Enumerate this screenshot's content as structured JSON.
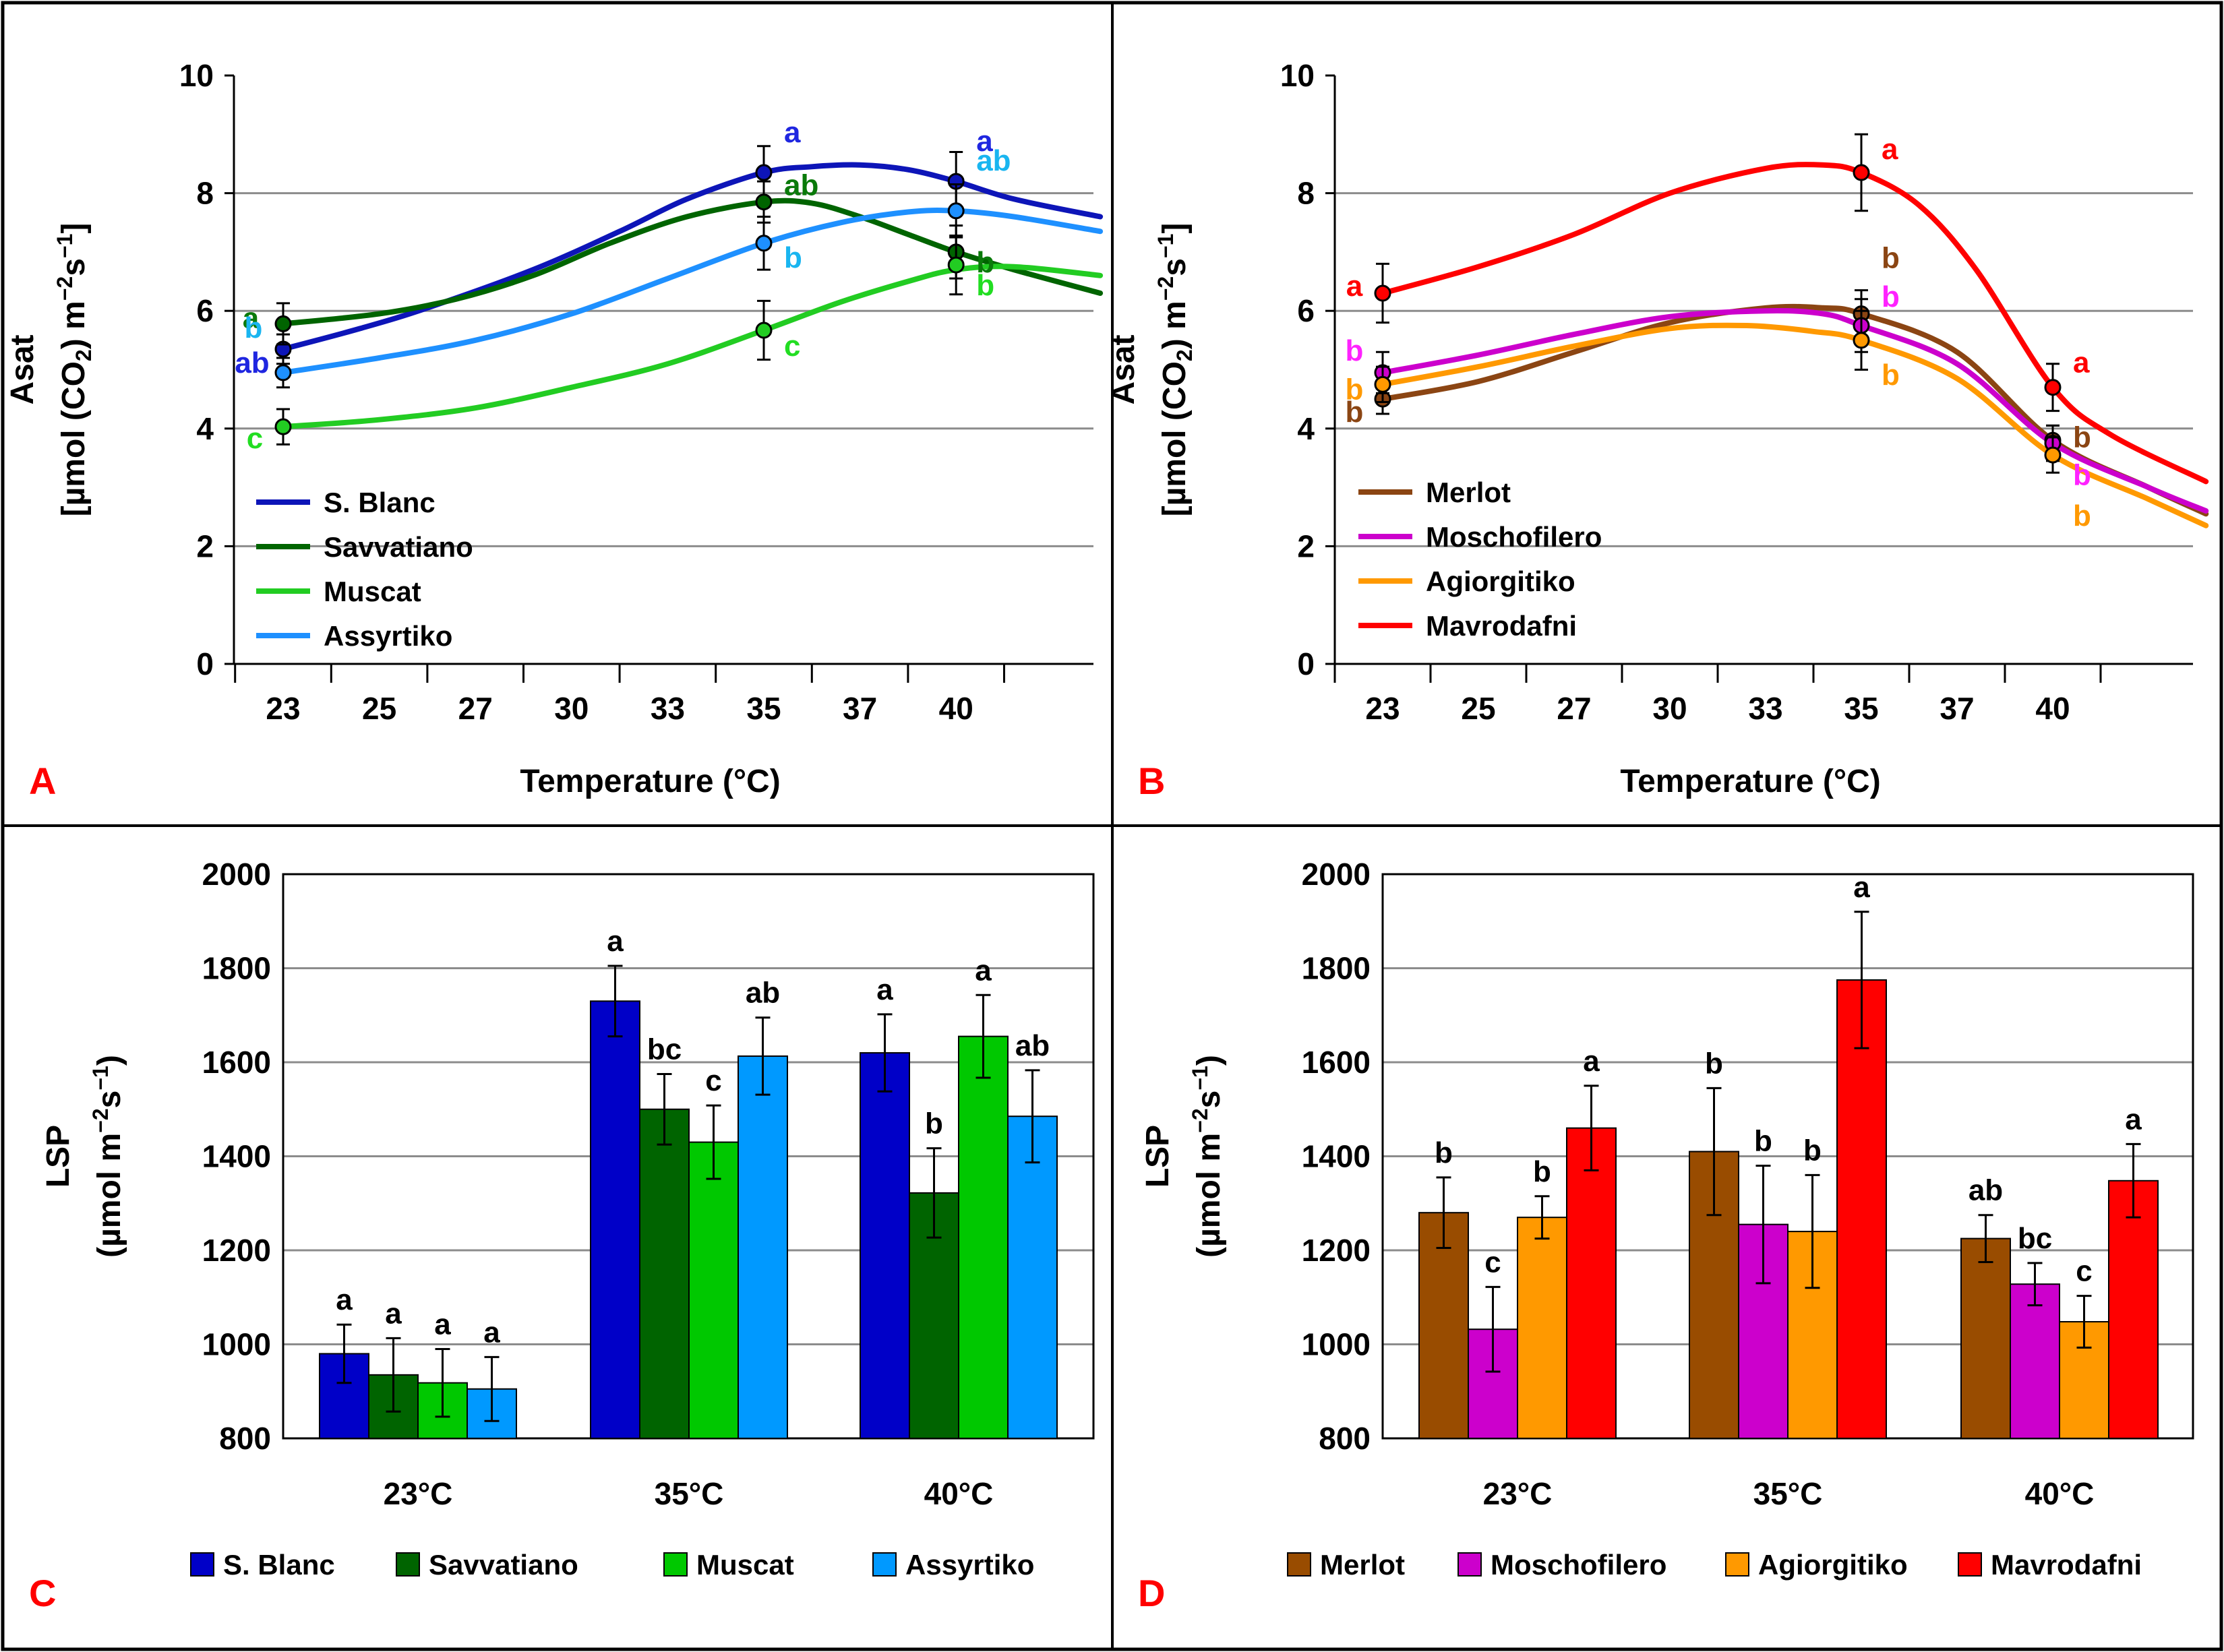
{
  "figure": {
    "panel_letter_color": "#ff0000",
    "border_color": "#000000"
  },
  "chart_data": [
    {
      "panel": "A",
      "type": "line",
      "title": "",
      "xlabel": "Temperature (°C)",
      "ylabel_line1": "Asat",
      "ylabel_line2": "[µmol (CO",
      "ylabel_sub": "2",
      "ylabel_line2_end": ") m",
      "ylabel_sup1": "−2",
      "ylabel_s": "s",
      "ylabel_sup2": "−1",
      "ylabel_close": "]",
      "x_ticks": [
        "23",
        "25",
        "27",
        "30",
        "33",
        "35",
        "37",
        "40"
      ],
      "ylim": [
        0,
        10
      ],
      "y_ticks": [
        "0",
        "2",
        "4",
        "6",
        "8",
        "10"
      ],
      "grid": true,
      "legend_position": "bottom-left",
      "series": [
        {
          "name": "S. Blanc",
          "color": "#0d15b8",
          "letter_color": "#1f26e0",
          "points": [
            {
              "t": "23",
              "value": 5.35,
              "err": 0.25,
              "sig": "ab"
            },
            {
              "t": "35",
              "value": 8.35,
              "err": 0.45,
              "sig": "a"
            },
            {
              "t": "40",
              "value": 8.2,
              "err": 0.5,
              "sig": "a"
            }
          ],
          "curve": [
            [
              0,
              5.35
            ],
            [
              0.8,
              5.7
            ],
            [
              1.5,
              6.05
            ],
            [
              2.6,
              6.7
            ],
            [
              3.5,
              7.35
            ],
            [
              4.2,
              7.9
            ],
            [
              5,
              8.35
            ],
            [
              5.5,
              8.45
            ],
            [
              6,
              8.48
            ],
            [
              6.5,
              8.4
            ],
            [
              7,
              8.2
            ],
            [
              7.6,
              7.9
            ],
            [
              8.5,
              7.6
            ]
          ]
        },
        {
          "name": "Savvatiano",
          "color": "#006400",
          "letter_color": "#0a7a0a",
          "points": [
            {
              "t": "23",
              "value": 5.78,
              "err": 0.35,
              "sig": "a"
            },
            {
              "t": "35",
              "value": 7.85,
              "err": 0.35,
              "sig": "ab"
            },
            {
              "t": "40",
              "value": 7.0,
              "err": 0.45,
              "sig": "b"
            }
          ],
          "curve": [
            [
              0,
              5.78
            ],
            [
              1,
              5.95
            ],
            [
              1.8,
              6.2
            ],
            [
              2.6,
              6.6
            ],
            [
              3.4,
              7.15
            ],
            [
              4.2,
              7.6
            ],
            [
              5,
              7.85
            ],
            [
              5.5,
              7.83
            ],
            [
              6,
              7.6
            ],
            [
              6.5,
              7.3
            ],
            [
              7,
              7.0
            ],
            [
              7.6,
              6.7
            ],
            [
              8.5,
              6.3
            ]
          ]
        },
        {
          "name": "Muscat",
          "color": "#22cc22",
          "letter_color": "#22dd22",
          "points": [
            {
              "t": "23",
              "value": 4.03,
              "err": 0.3,
              "sig": "c"
            },
            {
              "t": "35",
              "value": 5.67,
              "err": 0.5,
              "sig": "c"
            },
            {
              "t": "40",
              "value": 6.78,
              "err": 0.5,
              "sig": "b"
            }
          ],
          "curve": [
            [
              0,
              4.03
            ],
            [
              1,
              4.15
            ],
            [
              2,
              4.35
            ],
            [
              3,
              4.7
            ],
            [
              4,
              5.1
            ],
            [
              5,
              5.67
            ],
            [
              5.8,
              6.15
            ],
            [
              6.5,
              6.5
            ],
            [
              7,
              6.7
            ],
            [
              7.6,
              6.75
            ],
            [
              8.5,
              6.6
            ]
          ]
        },
        {
          "name": "Assyrtiko",
          "color": "#1e90ff",
          "letter_color": "#19b5f0",
          "points": [
            {
              "t": "23",
              "value": 4.95,
              "err": 0.25,
              "sig": "b"
            },
            {
              "t": "35",
              "value": 7.15,
              "err": 0.45,
              "sig": "b"
            },
            {
              "t": "40",
              "value": 7.7,
              "err": 0.45,
              "sig": "ab"
            }
          ],
          "curve": [
            [
              0,
              4.95
            ],
            [
              1,
              5.2
            ],
            [
              2,
              5.5
            ],
            [
              3,
              5.95
            ],
            [
              4,
              6.55
            ],
            [
              5,
              7.15
            ],
            [
              5.8,
              7.5
            ],
            [
              6.5,
              7.68
            ],
            [
              7,
              7.7
            ],
            [
              7.6,
              7.6
            ],
            [
              8.5,
              7.35
            ]
          ]
        }
      ]
    },
    {
      "panel": "B",
      "type": "line",
      "title": "",
      "xlabel": "Temperature (°C)",
      "ylabel_line1": "Asat",
      "ylabel_line2": "[µmol (CO",
      "ylabel_sub": "2",
      "ylabel_line2_end": ") m",
      "ylabel_sup1": "−2",
      "ylabel_s": "s",
      "ylabel_sup2": "−1",
      "ylabel_close": "]",
      "x_ticks": [
        "23",
        "25",
        "27",
        "30",
        "33",
        "35",
        "37",
        "40"
      ],
      "ylim": [
        0,
        10
      ],
      "y_ticks": [
        "0",
        "2",
        "4",
        "6",
        "8",
        "10"
      ],
      "grid": true,
      "legend_position": "bottom-left",
      "series": [
        {
          "name": "Merlot",
          "color": "#8b4513",
          "letter_color": "#8b4513",
          "points": [
            {
              "t": "23",
              "value": 4.5,
              "err": 0.25,
              "sig": "b"
            },
            {
              "t": "35",
              "value": 5.95,
              "err": 0.4,
              "sig": "b"
            },
            {
              "t": "40",
              "value": 3.8,
              "err": 0.25,
              "sig": "b"
            }
          ],
          "curve": [
            [
              0,
              4.5
            ],
            [
              1,
              4.8
            ],
            [
              2,
              5.3
            ],
            [
              3,
              5.8
            ],
            [
              4,
              6.05
            ],
            [
              4.6,
              6.05
            ],
            [
              5,
              5.95
            ],
            [
              6,
              5.3
            ],
            [
              7,
              3.8
            ],
            [
              8,
              3.0
            ],
            [
              8.6,
              2.55
            ]
          ]
        },
        {
          "name": "Moschofilero",
          "color": "#cc00cc",
          "letter_color": "#ff22ff",
          "points": [
            {
              "t": "23",
              "value": 4.95,
              "err": 0.35,
              "sig": "b"
            },
            {
              "t": "35",
              "value": 5.75,
              "err": 0.45,
              "sig": "b"
            },
            {
              "t": "40",
              "value": 3.75,
              "err": 0.3,
              "sig": "b"
            }
          ],
          "curve": [
            [
              0,
              4.95
            ],
            [
              1,
              5.25
            ],
            [
              2,
              5.6
            ],
            [
              3,
              5.9
            ],
            [
              4,
              6.0
            ],
            [
              4.6,
              5.95
            ],
            [
              5,
              5.75
            ],
            [
              6,
              5.1
            ],
            [
              7,
              3.75
            ],
            [
              8,
              3.0
            ],
            [
              8.6,
              2.6
            ]
          ]
        },
        {
          "name": "Agiorgitiko",
          "color": "#ff9900",
          "letter_color": "#ff9900",
          "points": [
            {
              "t": "23",
              "value": 4.75,
              "err": 0.3,
              "sig": "b"
            },
            {
              "t": "35",
              "value": 5.5,
              "err": 0.5,
              "sig": "b"
            },
            {
              "t": "40",
              "value": 3.55,
              "err": 0.3,
              "sig": "b"
            }
          ],
          "curve": [
            [
              0,
              4.75
            ],
            [
              1,
              5.05
            ],
            [
              2,
              5.4
            ],
            [
              3,
              5.7
            ],
            [
              3.8,
              5.75
            ],
            [
              4.5,
              5.65
            ],
            [
              5,
              5.5
            ],
            [
              6,
              4.85
            ],
            [
              7,
              3.55
            ],
            [
              8,
              2.8
            ],
            [
              8.6,
              2.35
            ]
          ]
        },
        {
          "name": "Mavrodafni",
          "color": "#ff0000",
          "letter_color": "#ff0000",
          "points": [
            {
              "t": "23",
              "value": 6.3,
              "err": 0.5,
              "sig": "a"
            },
            {
              "t": "35",
              "value": 8.35,
              "err": 0.65,
              "sig": "a"
            },
            {
              "t": "40",
              "value": 4.7,
              "err": 0.4,
              "sig": "a"
            }
          ],
          "curve": [
            [
              0,
              6.3
            ],
            [
              1,
              6.75
            ],
            [
              2,
              7.3
            ],
            [
              3,
              8.0
            ],
            [
              4,
              8.42
            ],
            [
              4.6,
              8.48
            ],
            [
              5,
              8.35
            ],
            [
              5.6,
              7.8
            ],
            [
              6.2,
              6.7
            ],
            [
              7,
              4.7
            ],
            [
              7.6,
              3.9
            ],
            [
              8.6,
              3.1
            ]
          ]
        }
      ]
    },
    {
      "panel": "C",
      "type": "bar",
      "title": "",
      "xlabel": "",
      "ylabel_line1": "LSP",
      "ylabel_line2": "(µmol m",
      "ylabel_sup1": "−2",
      "ylabel_s": "s",
      "ylabel_sup2": "−1",
      "ylabel_close": ")",
      "categories": [
        "23°C",
        "35°C",
        "40°C"
      ],
      "ylim": [
        800,
        2000
      ],
      "y_ticks": [
        "800",
        "1000",
        "1200",
        "1400",
        "1600",
        "1800",
        "2000"
      ],
      "grid": true,
      "legend_position": "bottom",
      "series": [
        {
          "name": "S. Blanc",
          "color": "#0000c8",
          "values": [
            980,
            1730,
            1620
          ],
          "errors": [
            62,
            75,
            82
          ],
          "sig": [
            "a",
            "a",
            "a"
          ]
        },
        {
          "name": "Savvatiano",
          "color": "#006400",
          "values": [
            935,
            1500,
            1322
          ],
          "errors": [
            78,
            75,
            95
          ],
          "sig": [
            "a",
            "bc",
            "b"
          ]
        },
        {
          "name": "Muscat",
          "color": "#00c800",
          "values": [
            918,
            1430,
            1655
          ],
          "errors": [
            72,
            78,
            88
          ],
          "sig": [
            "a",
            "c",
            "a"
          ]
        },
        {
          "name": "Assyrtiko",
          "color": "#0099ff",
          "values": [
            905,
            1613,
            1485
          ],
          "errors": [
            68,
            82,
            98
          ],
          "sig": [
            "a",
            "ab",
            "ab"
          ]
        }
      ]
    },
    {
      "panel": "D",
      "type": "bar",
      "title": "",
      "xlabel": "",
      "ylabel_line1": "LSP",
      "ylabel_line2": "(µmol m",
      "ylabel_sup1": "−2",
      "ylabel_s": "s",
      "ylabel_sup2": "−1",
      "ylabel_close": ")",
      "categories": [
        "23°C",
        "35°C",
        "40°C"
      ],
      "ylim": [
        800,
        2000
      ],
      "y_ticks": [
        "800",
        "1000",
        "1200",
        "1400",
        "1600",
        "1800",
        "2000"
      ],
      "grid": true,
      "legend_position": "bottom",
      "series": [
        {
          "name": "Merlot",
          "color": "#994c00",
          "values": [
            1280,
            1410,
            1225
          ],
          "errors": [
            75,
            135,
            50
          ],
          "sig": [
            "b",
            "b",
            "ab"
          ]
        },
        {
          "name": "Moschofilero",
          "color": "#cc00cc",
          "values": [
            1032,
            1255,
            1128
          ],
          "errors": [
            90,
            125,
            45
          ],
          "sig": [
            "c",
            "b",
            "bc"
          ]
        },
        {
          "name": "Agiorgitiko",
          "color": "#ff9900",
          "values": [
            1270,
            1240,
            1048
          ],
          "errors": [
            45,
            120,
            55
          ],
          "sig": [
            "b",
            "b",
            "c"
          ]
        },
        {
          "name": "Mavrodafni",
          "color": "#ff0000",
          "values": [
            1460,
            1775,
            1348
          ],
          "errors": [
            90,
            145,
            78
          ],
          "sig": [
            "a",
            "a",
            "a"
          ]
        }
      ]
    }
  ]
}
